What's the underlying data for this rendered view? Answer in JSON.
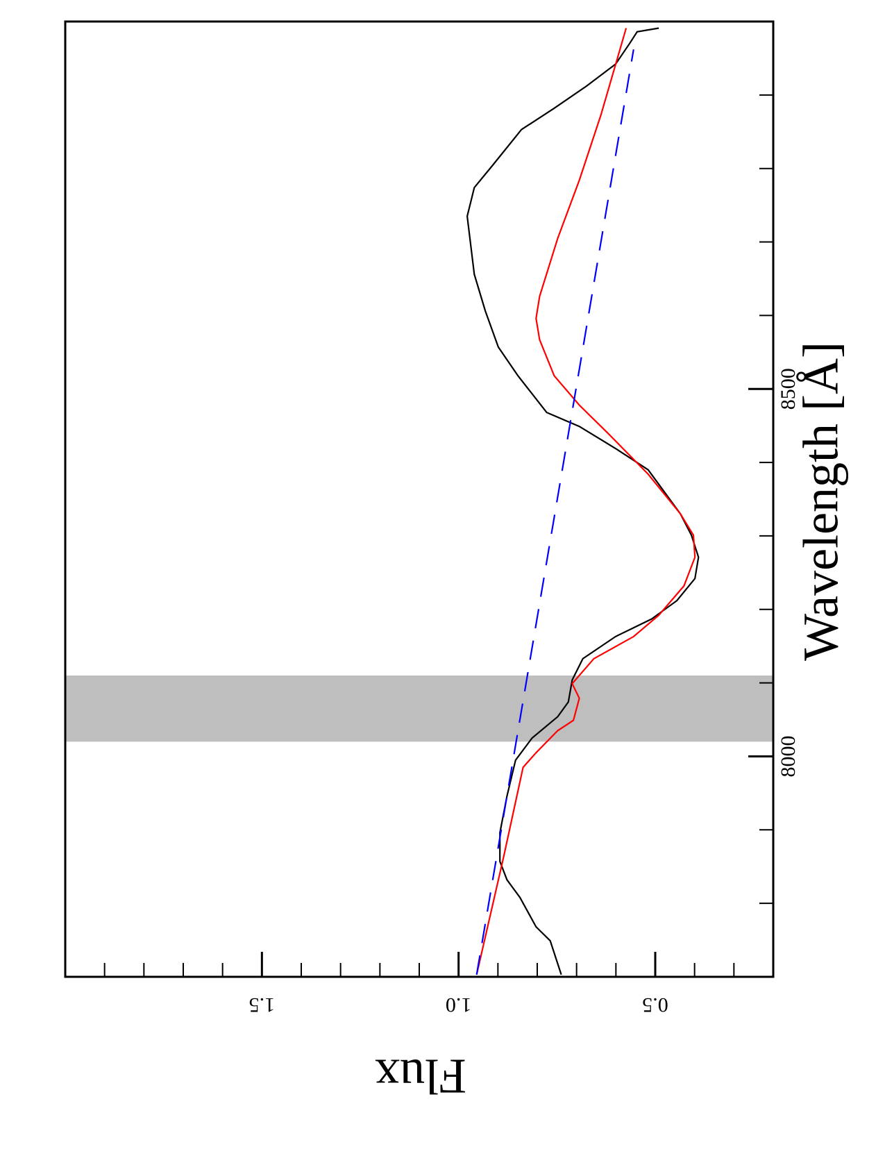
{
  "chart_data": {
    "type": "line",
    "orientation": "rotated",
    "x_label": "Wavelength [Å]",
    "y_label": "Flux",
    "xlim": [
      7700,
      9000
    ],
    "xticks": [
      8000,
      8500
    ],
    "xminorticks": [
      7800,
      7900,
      8100,
      8200,
      8300,
      8400,
      8600,
      8700,
      8800,
      8900
    ],
    "ylim": [
      0.2,
      2.0
    ],
    "yticks": [
      {
        "value": 0.5,
        "label": "0.5"
      },
      {
        "value": 1.0,
        "label": "1.0"
      },
      {
        "value": 1.5,
        "label": "1.5"
      }
    ],
    "yminorticks": [
      0.3,
      0.4,
      0.6,
      0.7,
      0.8,
      0.9,
      1.1,
      1.2,
      1.3,
      1.4,
      1.6,
      1.7,
      1.8,
      1.9
    ],
    "shaded_span": {
      "range": [
        8020,
        8110
      ],
      "color": "#bebebe"
    },
    "series": [
      {
        "color": "#000000",
        "dash": false,
        "x": [
          7703,
          7749,
          7768,
          7808,
          7832,
          7857,
          7896,
          7946,
          7995,
          8025,
          8054,
          8074,
          8104,
          8133,
          8163,
          8187,
          8212,
          8242,
          8271,
          8301,
          8330,
          8390,
          8419,
          8449,
          8468,
          8518,
          8557,
          8606,
          8656,
          8735,
          8774,
          8804,
          8853,
          8882,
          8912,
          8942,
          8971,
          8986,
          8991
        ],
        "values": [
          0.739,
          0.767,
          0.803,
          0.844,
          0.877,
          0.895,
          0.895,
          0.877,
          0.855,
          0.813,
          0.748,
          0.721,
          0.711,
          0.684,
          0.601,
          0.509,
          0.445,
          0.399,
          0.39,
          0.408,
          0.436,
          0.518,
          0.601,
          0.693,
          0.776,
          0.849,
          0.899,
          0.932,
          0.96,
          0.978,
          0.96,
          0.914,
          0.84,
          0.757,
          0.675,
          0.601,
          0.564,
          0.546,
          0.491
        ]
      },
      {
        "color": "#ff0000",
        "dash": false,
        "x": [
          7703,
          7862,
          7985,
          8005,
          8035,
          8049,
          8079,
          8099,
          8133,
          8163,
          8192,
          8232,
          8271,
          8301,
          8330,
          8384,
          8439,
          8478,
          8518,
          8567,
          8596,
          8626,
          8705,
          8784,
          8873,
          8991
        ],
        "values": [
          0.954,
          0.886,
          0.836,
          0.803,
          0.748,
          0.708,
          0.693,
          0.711,
          0.656,
          0.555,
          0.491,
          0.427,
          0.399,
          0.403,
          0.436,
          0.518,
          0.619,
          0.693,
          0.757,
          0.794,
          0.803,
          0.794,
          0.748,
          0.693,
          0.638,
          0.574
        ]
      },
      {
        "color": "#0000ff",
        "dash": true,
        "x": [
          7703,
          8962
        ],
        "values": [
          0.954,
          0.555
        ]
      }
    ]
  }
}
